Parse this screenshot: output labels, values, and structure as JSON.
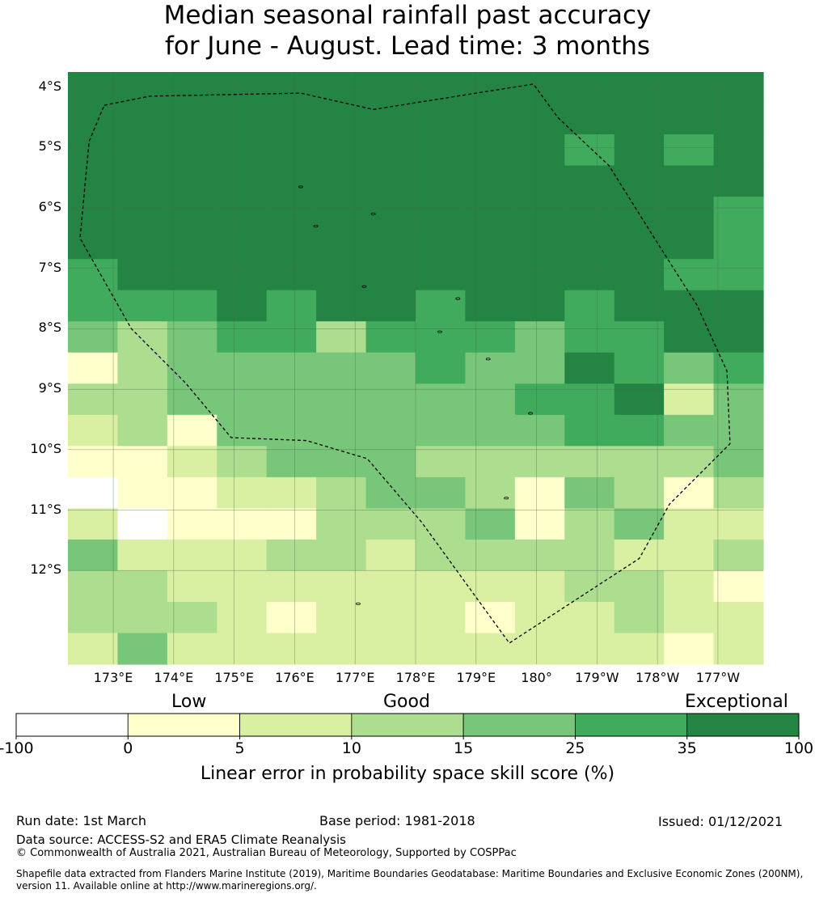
{
  "title": {
    "line1": "Median seasonal rainfall past accuracy",
    "line2": "for June - August. Lead time: 3 months"
  },
  "map": {
    "lat_labels": [
      "4°S",
      "5°S",
      "6°S",
      "7°S",
      "8°S",
      "9°S",
      "10°S",
      "11°S",
      "12°S"
    ],
    "lon_labels": [
      "173°E",
      "174°E",
      "175°E",
      "176°E",
      "177°E",
      "178°E",
      "179°E",
      "180°",
      "179°W",
      "178°W",
      "177°W"
    ],
    "grid_rows_lat_from": -3.75,
    "grid_cols_lon_from": 172.25,
    "cell_size_deg": 0.55,
    "skill_grid": [
      [
        6,
        6,
        6,
        6,
        6,
        6,
        6,
        6,
        6,
        6,
        6,
        6,
        6,
        6
      ],
      [
        6,
        6,
        6,
        6,
        6,
        6,
        6,
        6,
        6,
        6,
        6,
        6,
        6,
        6
      ],
      [
        6,
        6,
        6,
        6,
        6,
        6,
        6,
        6,
        6,
        6,
        5,
        6,
        5,
        6
      ],
      [
        6,
        6,
        6,
        6,
        6,
        6,
        6,
        6,
        6,
        6,
        6,
        6,
        6,
        6
      ],
      [
        6,
        6,
        6,
        6,
        6,
        6,
        6,
        6,
        6,
        6,
        6,
        6,
        6,
        5
      ],
      [
        6,
        6,
        6,
        6,
        6,
        6,
        6,
        6,
        6,
        6,
        6,
        6,
        6,
        5
      ],
      [
        5,
        6,
        6,
        6,
        6,
        6,
        6,
        6,
        6,
        6,
        6,
        6,
        5,
        5
      ],
      [
        5,
        5,
        5,
        6,
        5,
        6,
        6,
        5,
        6,
        6,
        5,
        6,
        6,
        6
      ],
      [
        4,
        3,
        4,
        5,
        5,
        3,
        5,
        5,
        5,
        4,
        5,
        5,
        6,
        6
      ],
      [
        1,
        3,
        4,
        4,
        4,
        4,
        4,
        5,
        4,
        4,
        6,
        5,
        4,
        5
      ],
      [
        3,
        3,
        4,
        4,
        4,
        4,
        4,
        4,
        4,
        5,
        5,
        6,
        2,
        4
      ],
      [
        2,
        3,
        1,
        4,
        4,
        4,
        4,
        4,
        4,
        4,
        5,
        5,
        4,
        4
      ],
      [
        1,
        1,
        2,
        3,
        4,
        4,
        4,
        3,
        3,
        3,
        3,
        3,
        3,
        4
      ],
      [
        0,
        1,
        1,
        2,
        2,
        3,
        4,
        4,
        3,
        1,
        4,
        3,
        1,
        3
      ],
      [
        2,
        0,
        1,
        1,
        1,
        3,
        3,
        3,
        4,
        1,
        3,
        4,
        2,
        2
      ],
      [
        4,
        2,
        2,
        2,
        3,
        3,
        2,
        3,
        3,
        3,
        3,
        2,
        2,
        3
      ],
      [
        3,
        3,
        2,
        2,
        2,
        2,
        2,
        2,
        2,
        2,
        3,
        3,
        2,
        1
      ],
      [
        3,
        3,
        3,
        2,
        1,
        2,
        2,
        2,
        1,
        2,
        2,
        3,
        2,
        2
      ],
      [
        2,
        4,
        2,
        2,
        2,
        2,
        2,
        2,
        2,
        2,
        2,
        2,
        1,
        2
      ]
    ]
  },
  "colorbar": {
    "colors": [
      "#ffffff",
      "#ffffcc",
      "#d9f0a3",
      "#addd8e",
      "#78c679",
      "#41ab5d",
      "#238443"
    ],
    "ticks": [
      "-100",
      "0",
      "5",
      "10",
      "15",
      "25",
      "35",
      "100"
    ],
    "categories": [
      "Low",
      "Good",
      "Exceptional"
    ],
    "title": "Linear error in probability space skill score (%)"
  },
  "footer": {
    "run_date": "Run date: 1st March",
    "base_period": "Base period: 1981-2018",
    "issued": "Issued: 01/12/2021",
    "data_source": "Data source: ACCESS-S2 and ERA5 Climate Reanalysis",
    "copyright": "© Commonwealth of Australia 2021, Australian Bureau of Meteorology, Supported by COSPPac",
    "shapefile_line1": "Shapefile data extracted from Flanders Marine Institute (2019), Maritime Boundaries Geodatabase: Maritime Boundaries and Exclusive Economic Zones (200NM),",
    "shapefile_line2": "version 11. Available online at http://www.marineregions.org/."
  },
  "eez_boundary_lonlat": [
    [
      172.85,
      -4.3
    ],
    [
      173.6,
      -4.15
    ],
    [
      176.1,
      -4.1
    ],
    [
      177.3,
      -4.37
    ],
    [
      179.95,
      -3.95
    ],
    [
      180.35,
      -4.5
    ],
    [
      181.2,
      -5.3
    ],
    [
      181.95,
      -6.5
    ],
    [
      182.65,
      -7.6
    ],
    [
      183.15,
      -8.7
    ],
    [
      183.2,
      -9.9
    ],
    [
      182.2,
      -10.9
    ],
    [
      181.7,
      -11.8
    ],
    [
      179.55,
      -13.2
    ],
    [
      178.1,
      -11.2
    ],
    [
      177.2,
      -10.15
    ],
    [
      176.2,
      -9.85
    ],
    [
      174.95,
      -9.8
    ],
    [
      174.2,
      -8.9
    ],
    [
      173.3,
      -8.0
    ],
    [
      172.45,
      -6.5
    ],
    [
      172.6,
      -4.9
    ],
    [
      172.85,
      -4.3
    ]
  ],
  "islands_lonlat": [
    [
      176.1,
      -5.65
    ],
    [
      177.3,
      -6.1
    ],
    [
      176.35,
      -6.3
    ],
    [
      177.15,
      -7.3
    ],
    [
      178.7,
      -7.5
    ],
    [
      178.4,
      -8.05
    ],
    [
      179.2,
      -8.5
    ],
    [
      179.9,
      -9.4
    ],
    [
      179.5,
      -10.8
    ],
    [
      177.05,
      -12.55
    ]
  ]
}
